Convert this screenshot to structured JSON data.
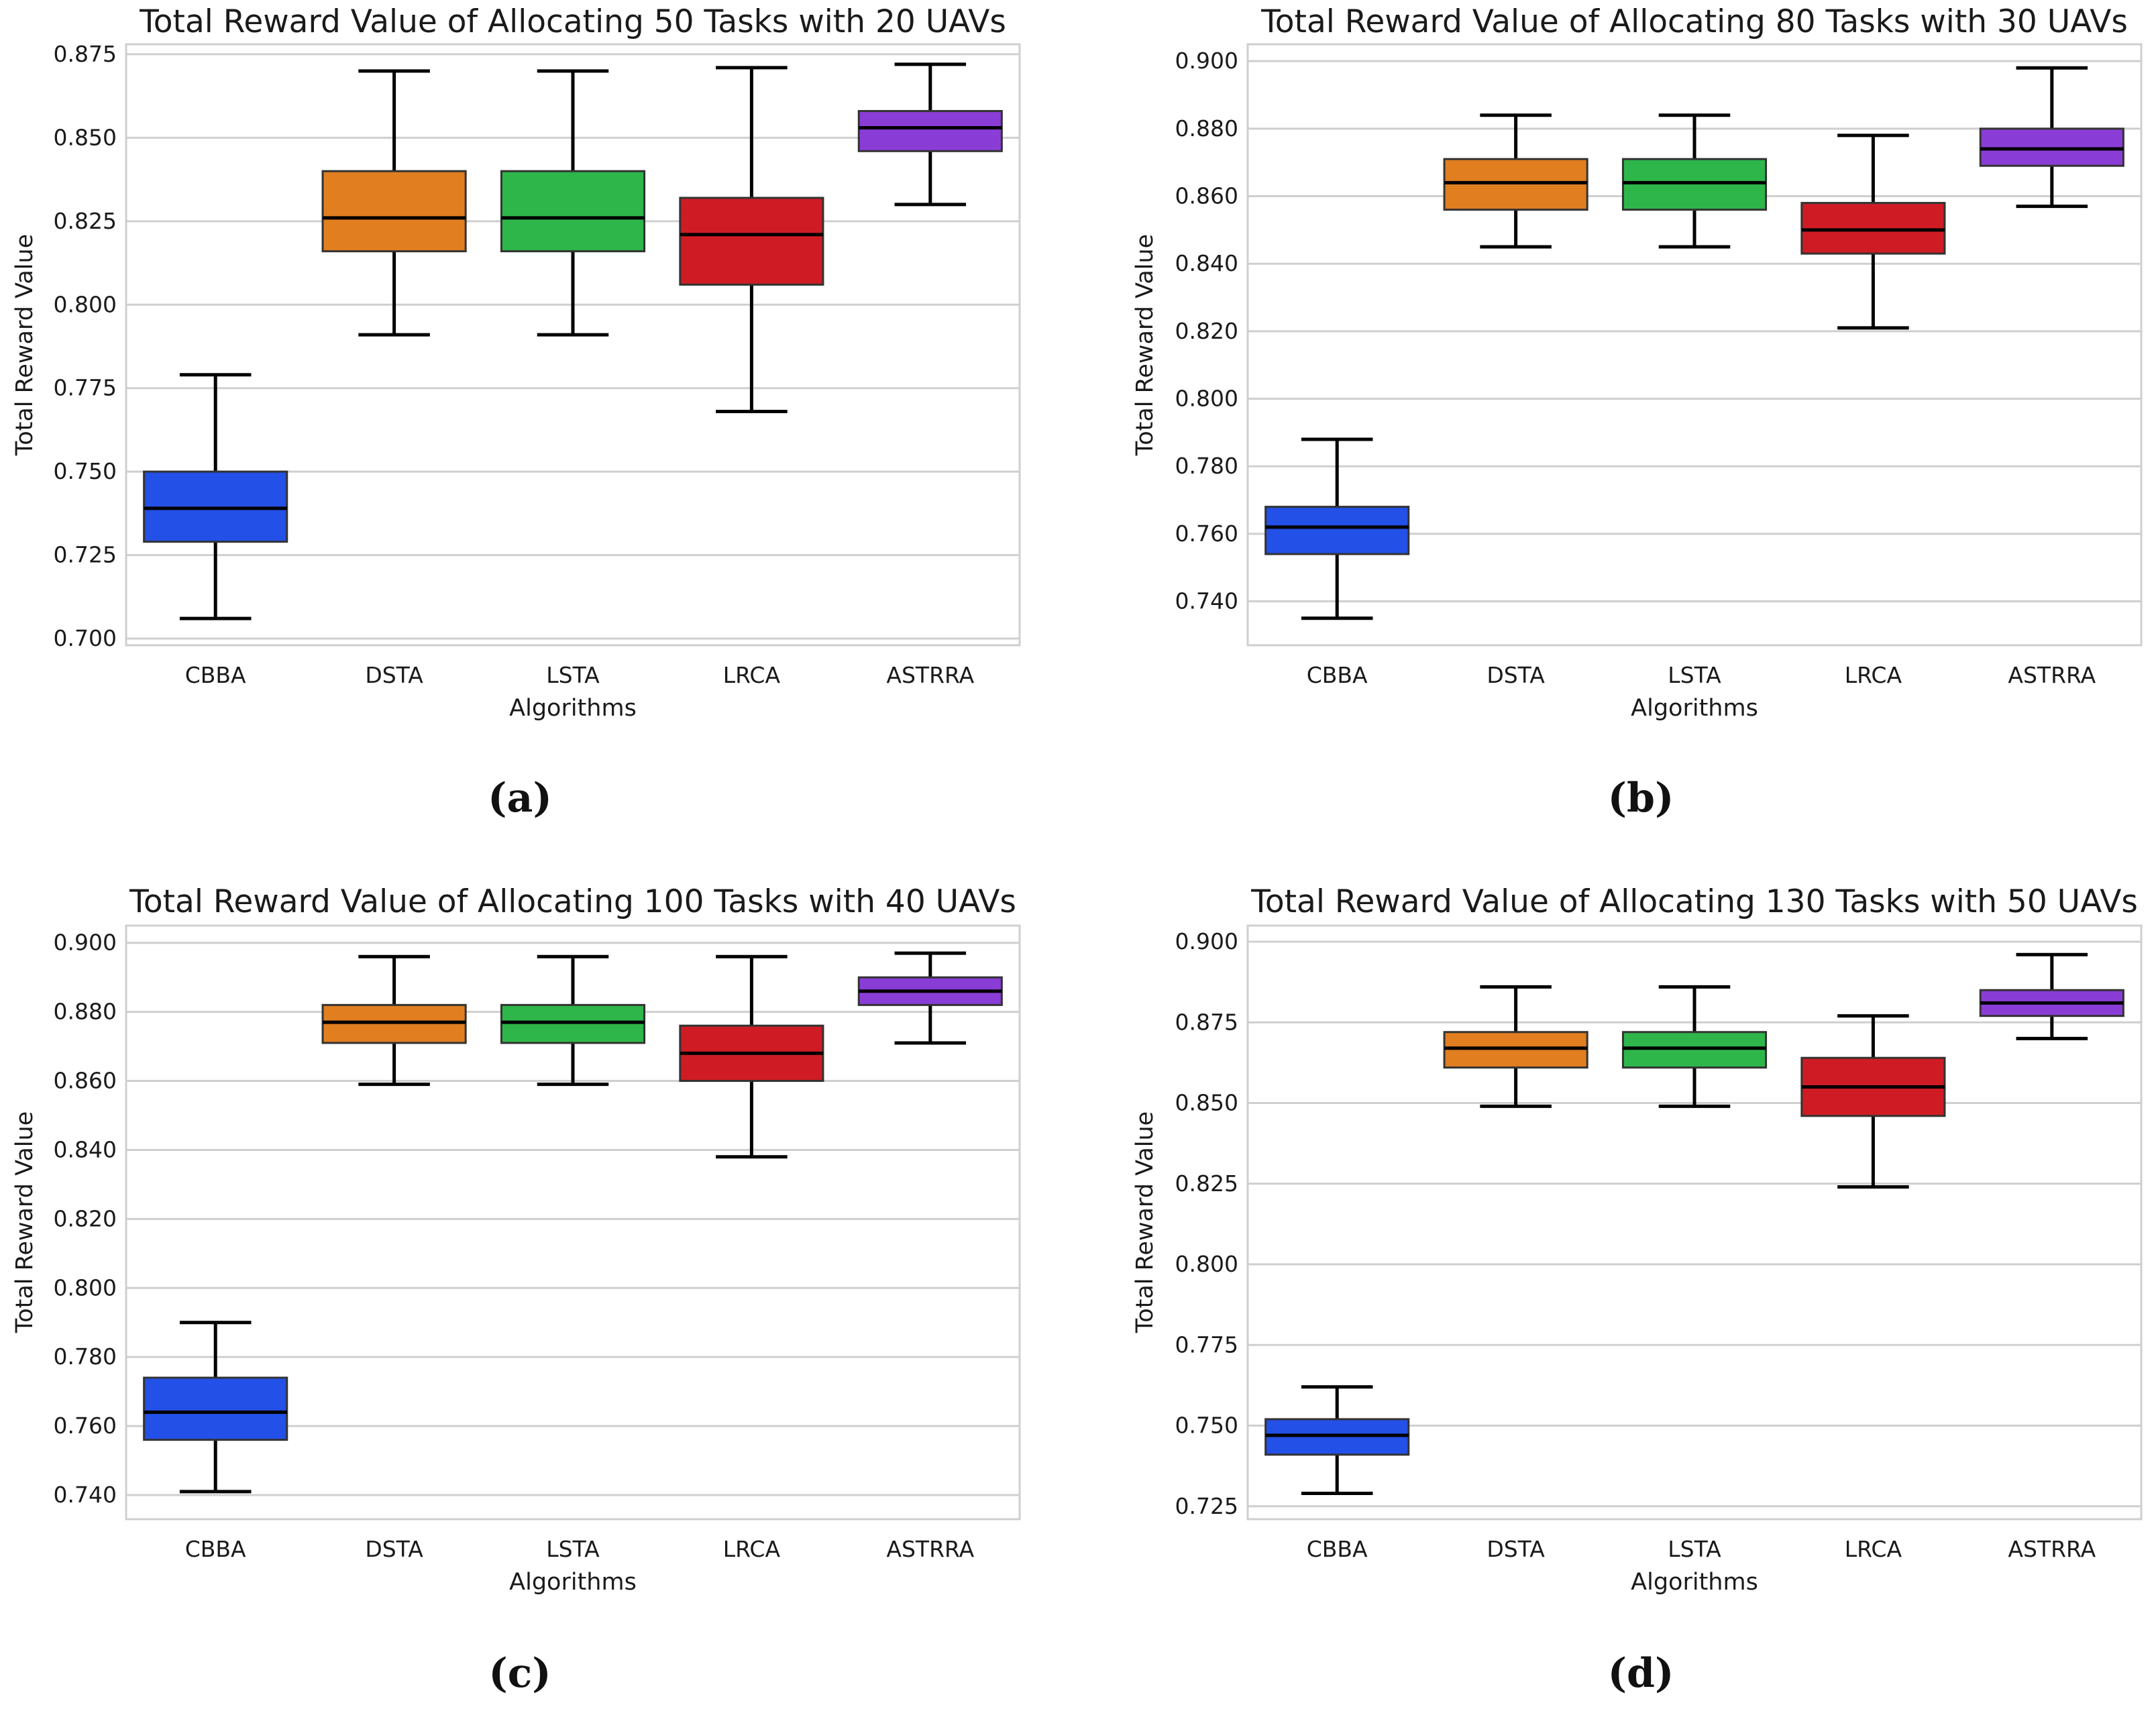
{
  "colors": {
    "CBBA": "#2350e6",
    "DSTA": "#e07e20",
    "LSTA": "#2eb64a",
    "LRCA": "#cf1c24",
    "ASTRRA": "#8a3dd6"
  },
  "chart_data": [
    {
      "type": "box",
      "panel_label": "(a)",
      "title": "Total Reward Value of Allocating 50 Tasks with 20 UAVs",
      "xlabel": "Algorithms",
      "ylabel": "Total Reward Value",
      "ylim": [
        0.698,
        0.878
      ],
      "yticks": [
        0.7,
        0.725,
        0.75,
        0.775,
        0.8,
        0.825,
        0.85,
        0.875
      ],
      "ytick_labels": [
        "0.700",
        "0.725",
        "0.750",
        "0.775",
        "0.800",
        "0.825",
        "0.850",
        "0.875"
      ],
      "categories": [
        "CBBA",
        "DSTA",
        "LSTA",
        "LRCA",
        "ASTRRA"
      ],
      "boxes": [
        {
          "name": "CBBA",
          "min": 0.706,
          "q1": 0.729,
          "median": 0.739,
          "q3": 0.75,
          "max": 0.779
        },
        {
          "name": "DSTA",
          "min": 0.791,
          "q1": 0.816,
          "median": 0.826,
          "q3": 0.84,
          "max": 0.87
        },
        {
          "name": "LSTA",
          "min": 0.791,
          "q1": 0.816,
          "median": 0.826,
          "q3": 0.84,
          "max": 0.87
        },
        {
          "name": "LRCA",
          "min": 0.768,
          "q1": 0.806,
          "median": 0.821,
          "q3": 0.832,
          "max": 0.871
        },
        {
          "name": "ASTRRA",
          "min": 0.83,
          "q1": 0.846,
          "median": 0.853,
          "q3": 0.858,
          "max": 0.872
        }
      ]
    },
    {
      "type": "box",
      "panel_label": "(b)",
      "title": "Total Reward Value of Allocating 80 Tasks with 30 UAVs",
      "xlabel": "Algorithms",
      "ylabel": "Total Reward Value",
      "ylim": [
        0.727,
        0.905
      ],
      "yticks": [
        0.74,
        0.76,
        0.78,
        0.8,
        0.82,
        0.84,
        0.86,
        0.88,
        0.9
      ],
      "ytick_labels": [
        "0.740",
        "0.760",
        "0.780",
        "0.800",
        "0.820",
        "0.840",
        "0.860",
        "0.880",
        "0.900"
      ],
      "categories": [
        "CBBA",
        "DSTA",
        "LSTA",
        "LRCA",
        "ASTRRA"
      ],
      "boxes": [
        {
          "name": "CBBA",
          "min": 0.735,
          "q1": 0.754,
          "median": 0.762,
          "q3": 0.768,
          "max": 0.788
        },
        {
          "name": "DSTA",
          "min": 0.845,
          "q1": 0.856,
          "median": 0.864,
          "q3": 0.871,
          "max": 0.884
        },
        {
          "name": "LSTA",
          "min": 0.845,
          "q1": 0.856,
          "median": 0.864,
          "q3": 0.871,
          "max": 0.884
        },
        {
          "name": "LRCA",
          "min": 0.821,
          "q1": 0.843,
          "median": 0.85,
          "q3": 0.858,
          "max": 0.878
        },
        {
          "name": "ASTRRA",
          "min": 0.857,
          "q1": 0.869,
          "median": 0.874,
          "q3": 0.88,
          "max": 0.898
        }
      ]
    },
    {
      "type": "box",
      "panel_label": "(c)",
      "title": "Total Reward Value of Allocating 100 Tasks with 40 UAVs",
      "xlabel": "Algorithms",
      "ylabel": "Total Reward Value",
      "ylim": [
        0.733,
        0.905
      ],
      "yticks": [
        0.74,
        0.76,
        0.78,
        0.8,
        0.82,
        0.84,
        0.86,
        0.88,
        0.9
      ],
      "ytick_labels": [
        "0.740",
        "0.760",
        "0.780",
        "0.800",
        "0.820",
        "0.840",
        "0.860",
        "0.880",
        "0.900"
      ],
      "categories": [
        "CBBA",
        "DSTA",
        "LSTA",
        "LRCA",
        "ASTRRA"
      ],
      "boxes": [
        {
          "name": "CBBA",
          "min": 0.741,
          "q1": 0.756,
          "median": 0.764,
          "q3": 0.774,
          "max": 0.79
        },
        {
          "name": "DSTA",
          "min": 0.859,
          "q1": 0.871,
          "median": 0.877,
          "q3": 0.882,
          "max": 0.896
        },
        {
          "name": "LSTA",
          "min": 0.859,
          "q1": 0.871,
          "median": 0.877,
          "q3": 0.882,
          "max": 0.896
        },
        {
          "name": "LRCA",
          "min": 0.838,
          "q1": 0.86,
          "median": 0.868,
          "q3": 0.876,
          "max": 0.896
        },
        {
          "name": "ASTRRA",
          "min": 0.871,
          "q1": 0.882,
          "median": 0.886,
          "q3": 0.89,
          "max": 0.897
        }
      ]
    },
    {
      "type": "box",
      "panel_label": "(d)",
      "title": "Total Reward Value of Allocating 130 Tasks with 50 UAVs",
      "xlabel": "Algorithms",
      "ylabel": "Total Reward Value",
      "ylim": [
        0.721,
        0.905
      ],
      "yticks": [
        0.725,
        0.75,
        0.775,
        0.8,
        0.825,
        0.85,
        0.875,
        0.9
      ],
      "ytick_labels": [
        "0.725",
        "0.750",
        "0.775",
        "0.800",
        "0.825",
        "0.850",
        "0.875",
        "0.900"
      ],
      "categories": [
        "CBBA",
        "DSTA",
        "LSTA",
        "LRCA",
        "ASTRRA"
      ],
      "boxes": [
        {
          "name": "CBBA",
          "min": 0.729,
          "q1": 0.741,
          "median": 0.747,
          "q3": 0.752,
          "max": 0.762
        },
        {
          "name": "DSTA",
          "min": 0.849,
          "q1": 0.861,
          "median": 0.867,
          "q3": 0.872,
          "max": 0.886
        },
        {
          "name": "LSTA",
          "min": 0.849,
          "q1": 0.861,
          "median": 0.867,
          "q3": 0.872,
          "max": 0.886
        },
        {
          "name": "LRCA",
          "min": 0.824,
          "q1": 0.846,
          "median": 0.855,
          "q3": 0.864,
          "max": 0.877
        },
        {
          "name": "ASTRRA",
          "min": 0.87,
          "q1": 0.877,
          "median": 0.881,
          "q3": 0.885,
          "max": 0.896
        }
      ]
    }
  ]
}
